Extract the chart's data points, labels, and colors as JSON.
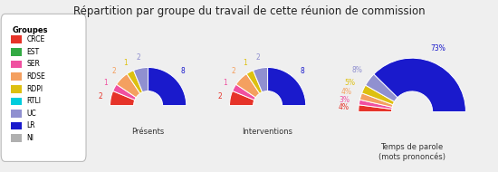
{
  "title": "Répartition par groupe du travail de cette réunion de commission",
  "groups": [
    "CRCE",
    "EST",
    "SER",
    "RDSE",
    "RDPI",
    "RTLI",
    "UC",
    "LR",
    "NI"
  ],
  "colors": [
    "#e63329",
    "#33aa44",
    "#f050a0",
    "#f4a060",
    "#ddc010",
    "#00ccdd",
    "#9090d0",
    "#1a1acc",
    "#b0b0b0"
  ],
  "presentes": [
    2,
    0,
    1,
    2,
    1,
    0,
    2,
    8,
    0
  ],
  "interventions": [
    2,
    0,
    1,
    2,
    1,
    0,
    2,
    8,
    0
  ],
  "temps_pct": [
    4,
    0,
    3,
    4,
    5,
    0,
    8,
    73,
    0
  ],
  "chart_labels": [
    "Présents",
    "Interventions",
    "Temps de parole\n(mots prononcés)"
  ],
  "background_color": "#efefef",
  "legend_title": "Groupes"
}
